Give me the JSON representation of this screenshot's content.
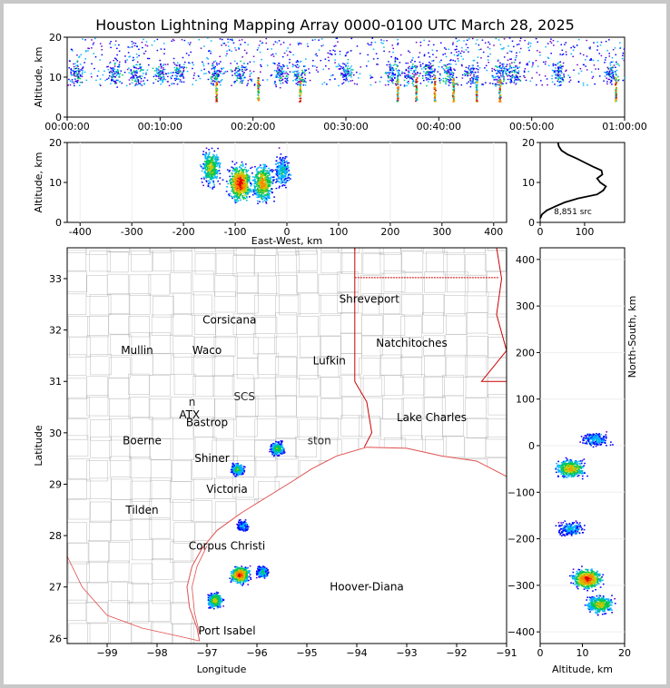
{
  "title": "Houston Lightning Mapping Array 0000-0100 UTC March 28, 2025",
  "colors": {
    "state_border": "#cc0000",
    "county_border": "#bbbbbb",
    "coast": "#e05050",
    "density_scale": [
      "#6a00c8",
      "#0000ff",
      "#00b4ff",
      "#00c850",
      "#c8c800",
      "#ff8000",
      "#e00000"
    ]
  },
  "chart_data": [
    {
      "id": "time-altitude",
      "type": "scatter",
      "xlabel": "",
      "ylabel": "Altitude, km",
      "xticks": [
        "00:00:00",
        "00:10:00",
        "00:20:00",
        "00:30:00",
        "00:40:00",
        "00:50:00",
        "01:00:00"
      ],
      "xlim_minutes": [
        0,
        60
      ],
      "ylim": [
        0,
        20
      ],
      "yticks": [
        0,
        10,
        20
      ],
      "bursts_minutes": [
        1,
        5,
        7.5,
        10,
        12,
        16,
        18.5,
        23,
        25,
        30,
        35,
        37,
        39,
        41,
        43.5,
        46.5,
        48,
        53,
        58.5
      ],
      "strong_columns_minutes": [
        16,
        20.5,
        25,
        35.5,
        37.5,
        39.5,
        41.5,
        44,
        46.5,
        59
      ]
    },
    {
      "id": "east-west-altitude",
      "type": "scatter",
      "xlabel": "East-West, km",
      "ylabel": "Altitude, km",
      "xlim": [
        -425,
        425
      ],
      "xticks": [
        -400,
        -300,
        -200,
        -100,
        0,
        100,
        200,
        300,
        400
      ],
      "ylim": [
        0,
        20
      ],
      "yticks": [
        0,
        10,
        20
      ],
      "clusters": [
        {
          "x": -148,
          "z": 14,
          "intensity": 0.6
        },
        {
          "x": -92,
          "z": 10,
          "intensity": 1.0
        },
        {
          "x": -48,
          "z": 10,
          "intensity": 0.75
        },
        {
          "x": -10,
          "z": 13,
          "intensity": 0.35
        }
      ]
    },
    {
      "id": "altitude-histogram",
      "type": "line",
      "xlim": [
        0,
        190
      ],
      "xticks": [
        0,
        100
      ],
      "ylim": [
        0,
        20
      ],
      "yticks": [
        0,
        10,
        20
      ],
      "profile": [
        [
          0,
          1
        ],
        [
          4,
          2
        ],
        [
          15,
          3
        ],
        [
          34,
          4
        ],
        [
          55,
          5
        ],
        [
          85,
          6
        ],
        [
          128,
          7
        ],
        [
          142,
          8
        ],
        [
          148,
          9
        ],
        [
          135,
          10
        ],
        [
          128,
          11
        ],
        [
          140,
          12
        ],
        [
          138,
          13
        ],
        [
          118,
          14
        ],
        [
          100,
          15
        ],
        [
          82,
          16
        ],
        [
          62,
          17
        ],
        [
          48,
          18
        ],
        [
          42,
          19
        ],
        [
          40,
          20
        ]
      ],
      "annotation": "8,851 src"
    },
    {
      "id": "plan-view",
      "type": "scatter",
      "xlabel": "Longitude",
      "ylabel": "Latitude",
      "xlim": [
        -99.8,
        -91
      ],
      "xticks": [
        -99,
        -98,
        -97,
        -96,
        -95,
        -94,
        -93,
        -92,
        -91
      ],
      "ylim": [
        25.9,
        33.6
      ],
      "yticks": [
        26,
        27,
        28,
        29,
        30,
        31,
        32,
        33
      ],
      "clusters": [
        {
          "lon": -95.6,
          "lat": 29.7,
          "intensity": 0.55
        },
        {
          "lon": -96.4,
          "lat": 29.3,
          "intensity": 0.5
        },
        {
          "lon": -96.3,
          "lat": 28.2,
          "intensity": 0.3
        },
        {
          "lon": -96.35,
          "lat": 27.25,
          "intensity": 1.0
        },
        {
          "lon": -95.9,
          "lat": 27.3,
          "intensity": 0.4
        },
        {
          "lon": -96.85,
          "lat": 26.75,
          "intensity": 0.7
        }
      ],
      "cities": [
        {
          "name": "Shreveport",
          "lon": -93.75,
          "lat": 32.6,
          "color": "#000000"
        },
        {
          "name": "Corsicana",
          "lon": -96.55,
          "lat": 32.2,
          "color": "#000000"
        },
        {
          "name": "Mullin",
          "lon": -98.4,
          "lat": 31.6,
          "color": "#f08040"
        },
        {
          "name": "Waco",
          "lon": -97.0,
          "lat": 31.6,
          "color": "#000000"
        },
        {
          "name": "Natchitoches",
          "lon": -92.9,
          "lat": 31.75,
          "color": "#000000"
        },
        {
          "name": "Lufkin",
          "lon": -94.55,
          "lat": 31.4,
          "color": "#000000"
        },
        {
          "name": "ATX",
          "lon": -97.35,
          "lat": 30.35,
          "color": "#f08040"
        },
        {
          "name": "Bastrop",
          "lon": -97.0,
          "lat": 30.2,
          "color": "#000000"
        },
        {
          "name": "Lake Charles",
          "lon": -92.5,
          "lat": 30.3,
          "color": "#000000"
        },
        {
          "name": "Boerne",
          "lon": -98.3,
          "lat": 29.85,
          "color": "#000000"
        },
        {
          "name": "Shiner",
          "lon": -96.9,
          "lat": 29.5,
          "color": "#000000"
        },
        {
          "name": "Victoria",
          "lon": -96.6,
          "lat": 28.9,
          "color": "#000000"
        },
        {
          "name": "Tilden",
          "lon": -98.3,
          "lat": 28.5,
          "color": "#000000"
        },
        {
          "name": "Corpus Christi",
          "lon": -96.6,
          "lat": 27.8,
          "color": "#000000"
        },
        {
          "name": "Hoover-Diana",
          "lon": -93.8,
          "lat": 27.0,
          "color": "#1010e0"
        },
        {
          "name": "Port Isabel",
          "lon": -96.6,
          "lat": 26.15,
          "color": "#000000"
        }
      ],
      "faint_labels": [
        {
          "name": "SCS",
          "lon": -96.25,
          "lat": 30.7,
          "color": "#a04040"
        },
        {
          "name": "ston",
          "lon": -94.75,
          "lat": 29.85,
          "color": "#f0a020"
        },
        {
          "name": "n",
          "lon": -97.3,
          "lat": 30.6,
          "color": "#80c040"
        }
      ]
    },
    {
      "id": "altitude-north-south",
      "type": "scatter",
      "xlabel": "Altitude, km",
      "ylabel": "North-South, km",
      "xlim": [
        0,
        20
      ],
      "xticks": [
        0,
        10,
        20
      ],
      "ylim": [
        -425,
        425
      ],
      "yticks": [
        -400,
        -300,
        -200,
        -100,
        0,
        100,
        200,
        300,
        400
      ],
      "clusters": [
        {
          "z": 13,
          "y": 15,
          "intensity": 0.3
        },
        {
          "z": 7,
          "y": -48,
          "intensity": 0.75
        },
        {
          "z": 7,
          "y": -178,
          "intensity": 0.3
        },
        {
          "z": 11,
          "y": -285,
          "intensity": 1.0
        },
        {
          "z": 14,
          "y": -340,
          "intensity": 0.65
        }
      ]
    }
  ]
}
